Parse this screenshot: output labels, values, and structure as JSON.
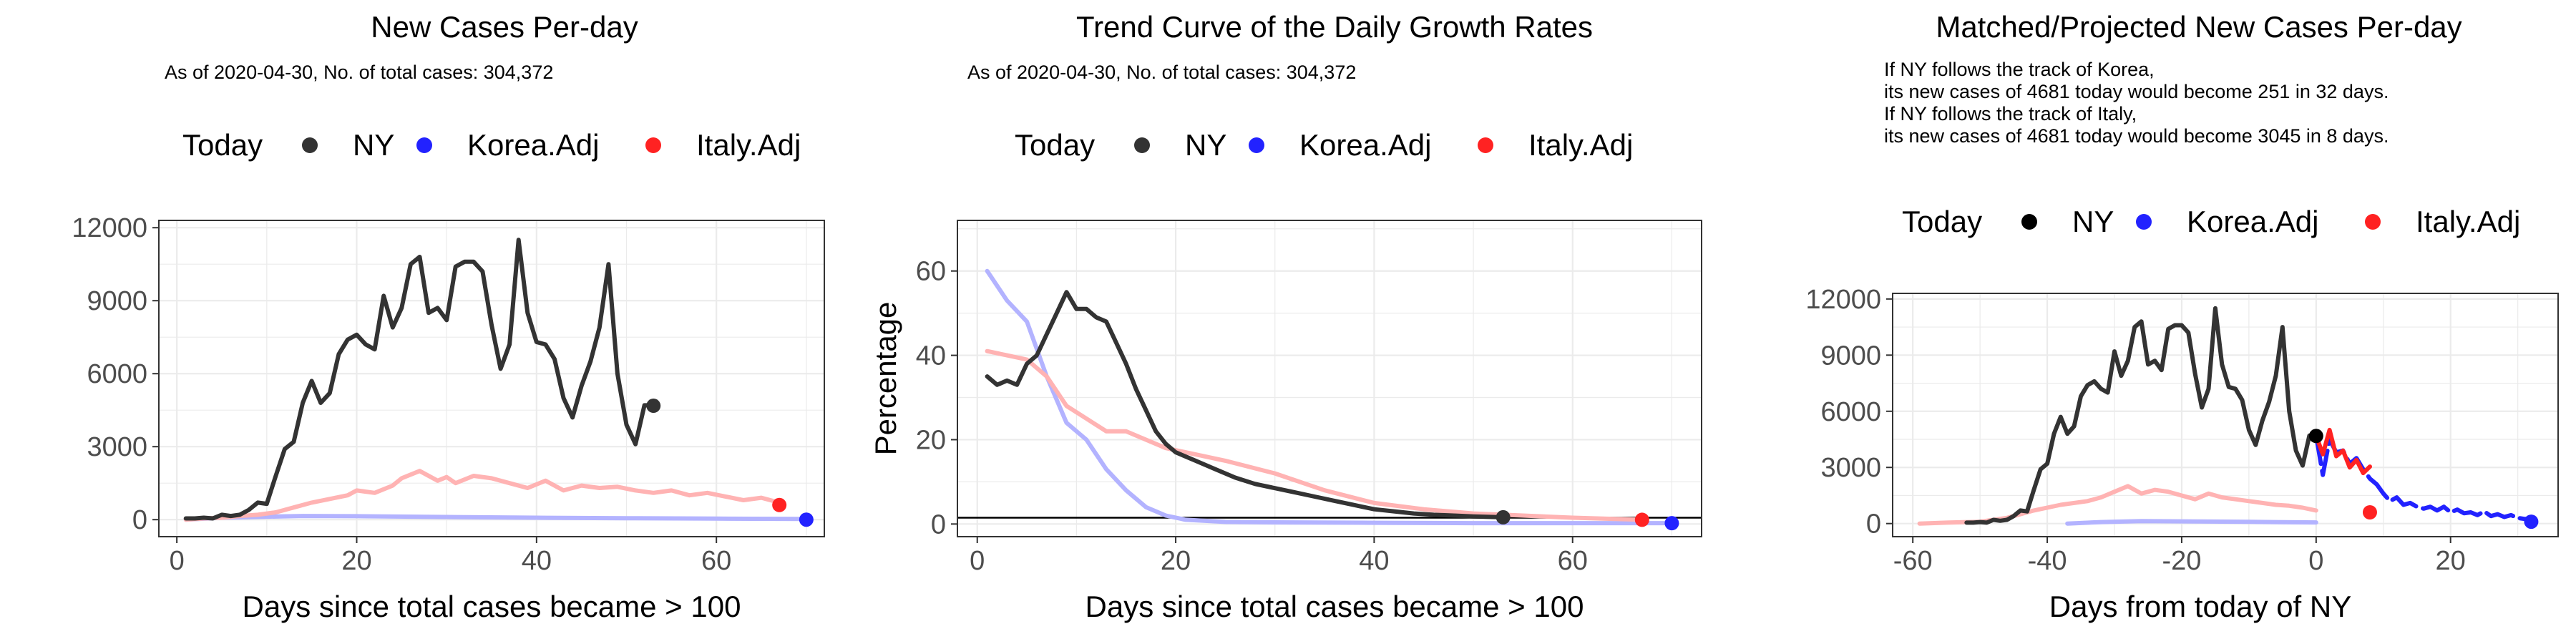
{
  "chart_data": [
    {
      "type": "line",
      "title": "New Cases Per-day",
      "subtitle": [
        "As of 2020-04-30, No. of total cases: 304,372"
      ],
      "xlabel": "Days since total cases became > 100",
      "ylabel": "",
      "xlim": [
        -2,
        72
      ],
      "ylim": [
        -700,
        12300
      ],
      "xticks": [
        0,
        20,
        40,
        60
      ],
      "yticks": [
        0,
        3000,
        6000,
        9000,
        12000
      ],
      "ytick_labels": [
        "0",
        "3000",
        "6000",
        "9000",
        "12000"
      ],
      "grid": true,
      "legend": {
        "placement": "top",
        "title": "Today",
        "entries": [
          "NY",
          "Korea.Adj",
          "Italy.Adj"
        ]
      },
      "series": [
        {
          "name": "Korea.Adj",
          "color": "#b3b3ff",
          "x": [
            1,
            5,
            10,
            14,
            20,
            30,
            40,
            50,
            60,
            70
          ],
          "y": [
            0,
            80,
            120,
            150,
            140,
            110,
            80,
            60,
            40,
            30
          ]
        },
        {
          "name": "Italy.Adj",
          "color": "#ffb3b3",
          "x": [
            1,
            3,
            5,
            7,
            9,
            11,
            13,
            15,
            17,
            19,
            20,
            22,
            24,
            25,
            27,
            29,
            30,
            31,
            33,
            35,
            37,
            39,
            41,
            43,
            45,
            47,
            49,
            51,
            53,
            55,
            57,
            59,
            61,
            63,
            65,
            67
          ],
          "y": [
            0,
            50,
            80,
            150,
            200,
            300,
            500,
            700,
            850,
            1000,
            1200,
            1100,
            1400,
            1700,
            2000,
            1600,
            1750,
            1500,
            1800,
            1700,
            1500,
            1300,
            1600,
            1200,
            1400,
            1300,
            1350,
            1200,
            1100,
            1200,
            1000,
            1100,
            950,
            800,
            900,
            700
          ]
        },
        {
          "name": "NY",
          "color": "#333333",
          "x": [
            1,
            2,
            3,
            4,
            5,
            6,
            7,
            8,
            9,
            10,
            11,
            12,
            13,
            14,
            15,
            16,
            17,
            18,
            19,
            20,
            21,
            22,
            23,
            24,
            25,
            26,
            27,
            28,
            29,
            30,
            31,
            32,
            33,
            34,
            35,
            36,
            37,
            38,
            39,
            40,
            41,
            42,
            43,
            44,
            45,
            46,
            47,
            48,
            49,
            50,
            51,
            52,
            53
          ],
          "y": [
            50,
            50,
            80,
            50,
            200,
            150,
            200,
            400,
            700,
            650,
            1800,
            2900,
            3200,
            4800,
            5700,
            4800,
            5200,
            6800,
            7400,
            7600,
            7200,
            7000,
            9200,
            7900,
            8700,
            10500,
            10800,
            8500,
            8700,
            8200,
            10400,
            10600,
            10600,
            10200,
            8000,
            6200,
            7200,
            11500,
            8500,
            7300,
            7200,
            6600,
            5000,
            4200,
            5500,
            6500,
            7900,
            10500,
            6000,
            3900,
            3100,
            4700,
            4700
          ]
        }
      ],
      "today_points": [
        {
          "series": "NY",
          "x": 53,
          "y": 4681,
          "color": "#333333"
        },
        {
          "series": "Italy.Adj",
          "x": 67,
          "y": 600,
          "color": "#ff2222"
        },
        {
          "series": "Korea.Adj",
          "x": 70,
          "y": 0,
          "color": "#2222ff"
        }
      ]
    },
    {
      "type": "line",
      "title": "Trend Curve of the Daily Growth Rates",
      "subtitle": [
        "As of 2020-04-30, No. of total cases: 304,372"
      ],
      "xlabel": "Days since total cases became > 100",
      "ylabel": "Percentage",
      "xlim": [
        -2,
        73
      ],
      "ylim": [
        -3,
        72
      ],
      "xticks": [
        0,
        20,
        40,
        60
      ],
      "yticks": [
        0,
        20,
        40,
        60
      ],
      "ytick_labels": [
        "0",
        "20",
        "40",
        "60"
      ],
      "grid": true,
      "reference_line_y": 1.5,
      "legend": {
        "placement": "top",
        "title": "Today",
        "entries": [
          "NY",
          "Korea.Adj",
          "Italy.Adj"
        ]
      },
      "series": [
        {
          "name": "Korea.Adj",
          "color": "#b3b3ff",
          "x": [
            1,
            3,
            5,
            7,
            9,
            11,
            13,
            15,
            17,
            19,
            21,
            25,
            30,
            40,
            50,
            60,
            70
          ],
          "y": [
            60,
            53,
            48,
            35,
            24,
            20,
            13,
            8,
            4,
            2,
            1,
            0.5,
            0.4,
            0.3,
            0.2,
            0.2,
            0.2
          ]
        },
        {
          "name": "Italy.Adj",
          "color": "#ffb3b3",
          "x": [
            1,
            3,
            5,
            7,
            9,
            11,
            13,
            15,
            17,
            19,
            21,
            25,
            30,
            35,
            40,
            45,
            50,
            55,
            60,
            67
          ],
          "y": [
            41,
            40,
            39,
            35,
            28,
            25,
            22,
            22,
            20,
            18,
            17,
            15,
            12,
            8,
            5,
            3.5,
            2.5,
            2,
            1.5,
            1
          ]
        },
        {
          "name": "NY",
          "color": "#333333",
          "x": [
            1,
            2,
            3,
            4,
            5,
            6,
            7,
            8,
            9,
            10,
            11,
            12,
            13,
            14,
            15,
            16,
            17,
            18,
            19,
            20,
            22,
            24,
            26,
            28,
            30,
            32,
            34,
            36,
            38,
            40,
            42,
            44,
            46,
            48,
            50,
            53
          ],
          "y": [
            35,
            33,
            34,
            33,
            38,
            40,
            45,
            50,
            55,
            51,
            51,
            49,
            48,
            43,
            38,
            32,
            27,
            22,
            19,
            17,
            15,
            13,
            11,
            9.5,
            8.5,
            7.5,
            6.5,
            5.5,
            4.5,
            3.5,
            3,
            2.5,
            2.2,
            2,
            1.8,
            1.6
          ]
        }
      ],
      "today_points": [
        {
          "series": "NY",
          "x": 53,
          "y": 1.6,
          "color": "#333333"
        },
        {
          "series": "Italy.Adj",
          "x": 67,
          "y": 1,
          "color": "#ff2222"
        },
        {
          "series": "Korea.Adj",
          "x": 70,
          "y": 0.2,
          "color": "#2222ff"
        }
      ]
    },
    {
      "type": "line",
      "title": "Matched/Projected New Cases Per-day",
      "subtitle": [
        "If NY follows the track of Korea,",
        "its new cases of 4681 today would become 251 in 32 days.",
        "If NY follows the track of Italy,",
        "its new cases of 4681 today would become 3045 in 8 days."
      ],
      "xlabel": "Days from today of NY",
      "ylabel": "",
      "xlim": [
        -63,
        36
      ],
      "ylim": [
        -700,
        12300
      ],
      "xticks": [
        -60,
        -40,
        -20,
        0,
        20
      ],
      "yticks": [
        0,
        3000,
        6000,
        9000,
        12000
      ],
      "ytick_labels": [
        "0",
        "3000",
        "6000",
        "9000",
        "12000"
      ],
      "grid": true,
      "legend": {
        "placement": "top",
        "title": "Today",
        "entries": [
          "NY",
          "Korea.Adj",
          "Italy.Adj"
        ]
      },
      "series": [
        {
          "name": "Korea.Adj",
          "color": "#b3b3ff",
          "x": [
            -37,
            -32,
            -26,
            -20,
            -10,
            0
          ],
          "y": [
            0,
            80,
            130,
            120,
            90,
            60
          ]
        },
        {
          "name": "Italy.Adj",
          "color": "#ffb3b3",
          "x": [
            -59,
            -55,
            -50,
            -46,
            -42,
            -38,
            -34,
            -32,
            -30,
            -28,
            -26,
            -24,
            -22,
            -20,
            -18,
            -16,
            -14,
            -12,
            -10,
            -8,
            -6,
            -4,
            -2,
            0
          ],
          "y": [
            0,
            50,
            100,
            300,
            700,
            1000,
            1200,
            1400,
            1700,
            2000,
            1600,
            1800,
            1700,
            1500,
            1300,
            1600,
            1400,
            1300,
            1200,
            1100,
            1000,
            950,
            850,
            700
          ]
        },
        {
          "name": "NY",
          "color": "#333333",
          "x": [
            -52,
            -51,
            -50,
            -49,
            -48,
            -47,
            -46,
            -45,
            -44,
            -43,
            -42,
            -41,
            -40,
            -39,
            -38,
            -37,
            -36,
            -35,
            -34,
            -33,
            -32,
            -31,
            -30,
            -29,
            -28,
            -27,
            -26,
            -25,
            -24,
            -23,
            -22,
            -21,
            -20,
            -19,
            -18,
            -17,
            -16,
            -15,
            -14,
            -13,
            -12,
            -11,
            -10,
            -9,
            -8,
            -7,
            -6,
            -5,
            -4,
            -3,
            -2,
            -1,
            0
          ],
          "y": [
            50,
            50,
            80,
            50,
            200,
            150,
            200,
            400,
            700,
            650,
            1800,
            2900,
            3200,
            4800,
            5700,
            4800,
            5200,
            6800,
            7400,
            7600,
            7200,
            7000,
            9200,
            7900,
            8700,
            10500,
            10800,
            8500,
            8700,
            8200,
            10400,
            10600,
            10600,
            10200,
            8000,
            6200,
            7200,
            11500,
            8500,
            7300,
            7200,
            6600,
            5000,
            4200,
            5500,
            6500,
            7900,
            10500,
            6000,
            3900,
            3100,
            4700,
            4700
          ]
        },
        {
          "name": "Korea.Adj",
          "role": "projection",
          "color": "#2222ff",
          "x": [
            0,
            1,
            2,
            3,
            4,
            5,
            6,
            7,
            8,
            9,
            10,
            11,
            12,
            13,
            14,
            15,
            16,
            17,
            18,
            19,
            20,
            21,
            22,
            23,
            24,
            25,
            26,
            27,
            28,
            29,
            30,
            31,
            32
          ],
          "y": [
            4700,
            2600,
            4500,
            3800,
            3900,
            3200,
            3500,
            2900,
            2400,
            2100,
            1600,
            1200,
            1400,
            1000,
            1100,
            900,
            800,
            900,
            700,
            900,
            600,
            750,
            550,
            600,
            450,
            650,
            400,
            500,
            350,
            450,
            300,
            250,
            251
          ]
        },
        {
          "name": "Italy.Adj",
          "role": "projection",
          "color": "#ff2222",
          "x": [
            0,
            1,
            2,
            3,
            4,
            5,
            6,
            7,
            8
          ],
          "y": [
            4700,
            3700,
            5000,
            3600,
            3900,
            3000,
            3400,
            2700,
            3045
          ]
        }
      ],
      "today_points": [
        {
          "series": "NY",
          "x": 0,
          "y": 4681,
          "color": "#000000"
        },
        {
          "series": "Italy.Adj",
          "x": 8,
          "y": 600,
          "color": "#ff2222"
        },
        {
          "series": "Korea.Adj",
          "x": 32,
          "y": 100,
          "color": "#2222ff"
        }
      ]
    }
  ],
  "legend_colors": {
    "NY": "#333333",
    "Korea.Adj": "#2222ff",
    "Italy.Adj": "#ff2222"
  }
}
